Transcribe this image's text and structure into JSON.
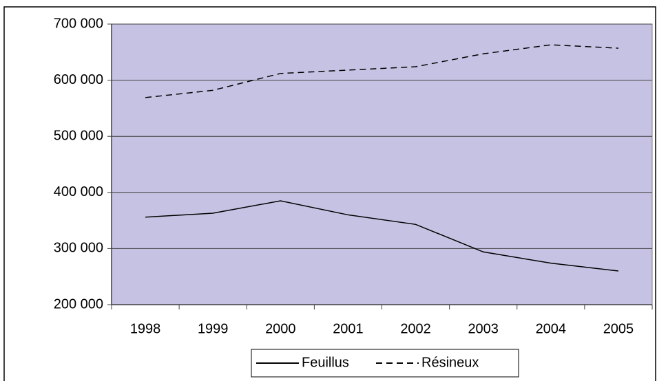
{
  "chart_data": {
    "type": "line",
    "categories": [
      "1998",
      "1999",
      "2000",
      "2001",
      "2002",
      "2003",
      "2004",
      "2005"
    ],
    "series": [
      {
        "name": "Feuillus",
        "color": "#000000",
        "style": "solid",
        "values": [
          356000,
          363000,
          385000,
          360000,
          343000,
          294000,
          274000,
          260000
        ]
      },
      {
        "name": "Résineux",
        "color": "#000000",
        "style": "dashed",
        "values": [
          569000,
          582000,
          612000,
          618000,
          624000,
          647000,
          663000,
          657000
        ]
      }
    ],
    "ylim": [
      200000,
      700000
    ],
    "yticks": [
      {
        "value": 200000,
        "label": "200 000"
      },
      {
        "value": 300000,
        "label": "300 000"
      },
      {
        "value": 400000,
        "label": "400 000"
      },
      {
        "value": 500000,
        "label": "500 000"
      },
      {
        "value": 600000,
        "label": "600 000"
      },
      {
        "value": 700000,
        "label": "700 000"
      }
    ],
    "grid": true,
    "background": "#c6c2e3",
    "legend": "bottom"
  }
}
